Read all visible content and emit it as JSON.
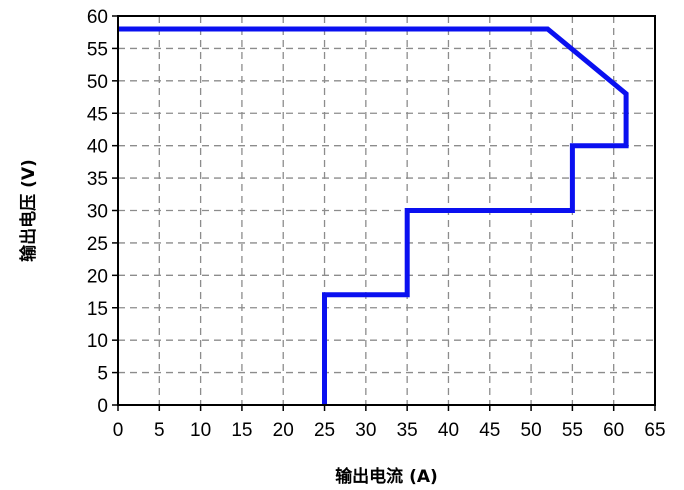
{
  "chart_data": {
    "type": "line",
    "xlabel": "输出电流 (A)",
    "ylabel": "输出电压 (V)",
    "xlim": [
      0,
      65
    ],
    "ylim": [
      0,
      60
    ],
    "x_ticks": [
      0,
      5,
      10,
      15,
      20,
      25,
      30,
      35,
      40,
      45,
      50,
      55,
      60,
      65
    ],
    "y_ticks": [
      0,
      5,
      10,
      15,
      20,
      25,
      30,
      35,
      40,
      45,
      50,
      55,
      60
    ],
    "grid": true,
    "grid_style": "dashed",
    "legend": false,
    "series": [
      {
        "color": "#0a10f0",
        "points": [
          [
            0,
            58
          ],
          [
            52,
            58
          ],
          [
            61.5,
            48
          ],
          [
            61.5,
            40
          ],
          [
            55,
            40
          ],
          [
            55,
            30
          ],
          [
            35,
            30
          ],
          [
            35,
            17
          ],
          [
            25,
            17
          ],
          [
            25,
            0
          ]
        ]
      }
    ]
  }
}
